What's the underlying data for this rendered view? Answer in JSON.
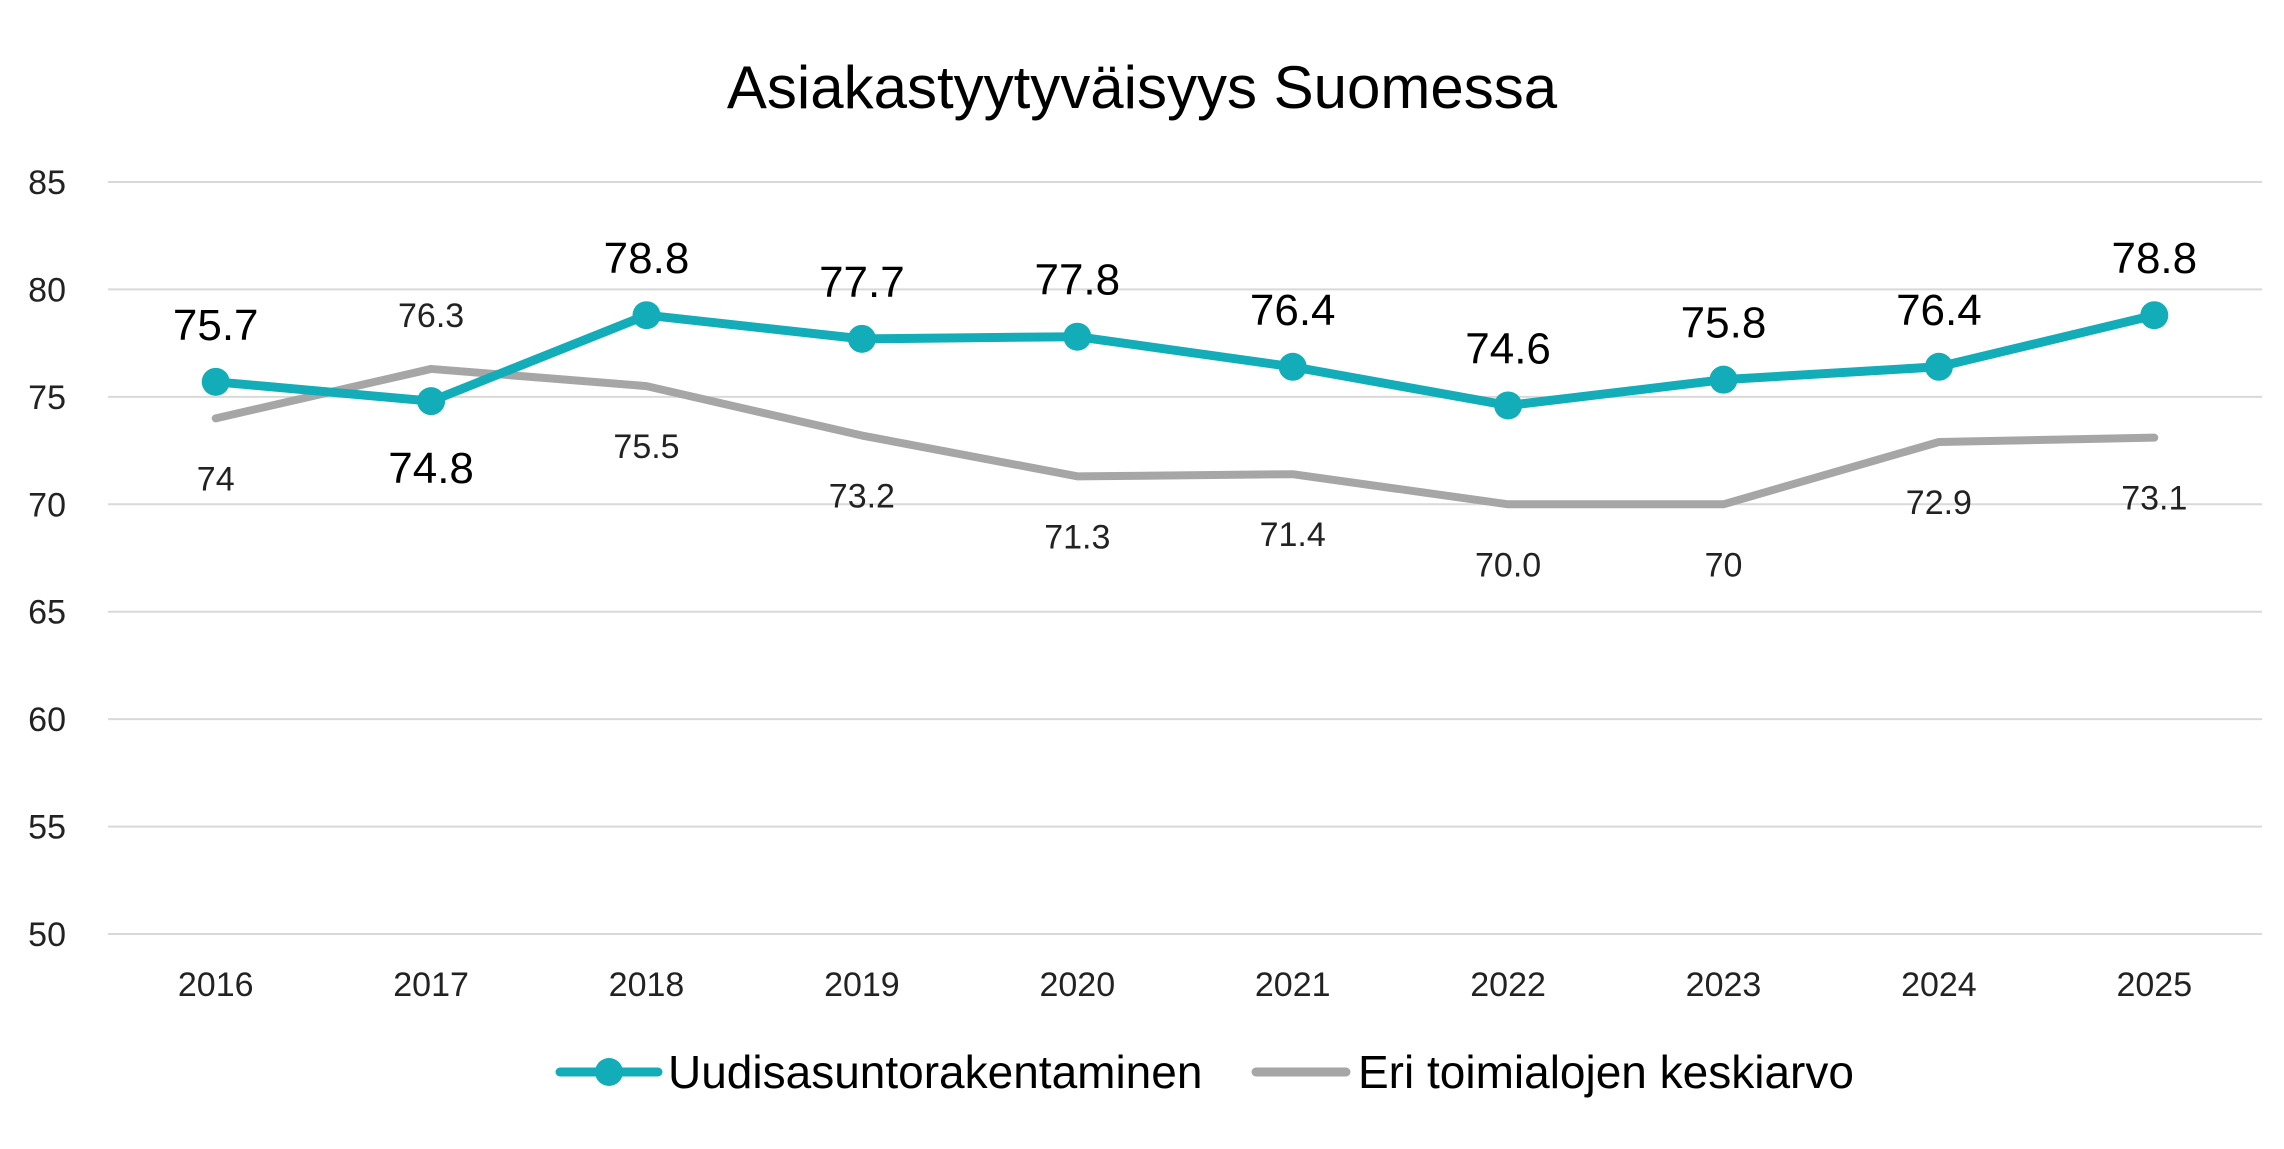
{
  "chart_data": {
    "type": "line",
    "title": "Asiakastyytyväisyys Suomessa",
    "categories": [
      "2016",
      "2017",
      "2018",
      "2019",
      "2020",
      "2021",
      "2022",
      "2023",
      "2024",
      "2025"
    ],
    "ylim": [
      50,
      85
    ],
    "yticks": [
      "50",
      "55",
      "60",
      "65",
      "70",
      "75",
      "80",
      "85"
    ],
    "grid": true,
    "legend_position": "bottom",
    "series": [
      {
        "name": "Uudisasuntorakentaminen",
        "color": "#12adb8",
        "marker": "circle",
        "values": [
          75.7,
          74.8,
          78.8,
          77.7,
          77.8,
          76.4,
          74.6,
          75.8,
          76.4,
          78.8
        ],
        "labels": [
          "75.7",
          "74.8",
          "78.8",
          "77.7",
          "77.8",
          "76.4",
          "74.6",
          "75.8",
          "76.4",
          "78.8"
        ]
      },
      {
        "name": "Eri toimialojen keskiarvo",
        "color": "#a6a6a6",
        "marker": "none",
        "values": [
          74,
          76.3,
          75.5,
          73.2,
          71.3,
          71.4,
          70.0,
          70,
          72.9,
          73.1
        ],
        "labels": [
          "74",
          "76.3",
          "75.5",
          "73.2",
          "71.3",
          "71.4",
          "70.0",
          "70",
          "72.9",
          "73.1"
        ]
      }
    ]
  }
}
